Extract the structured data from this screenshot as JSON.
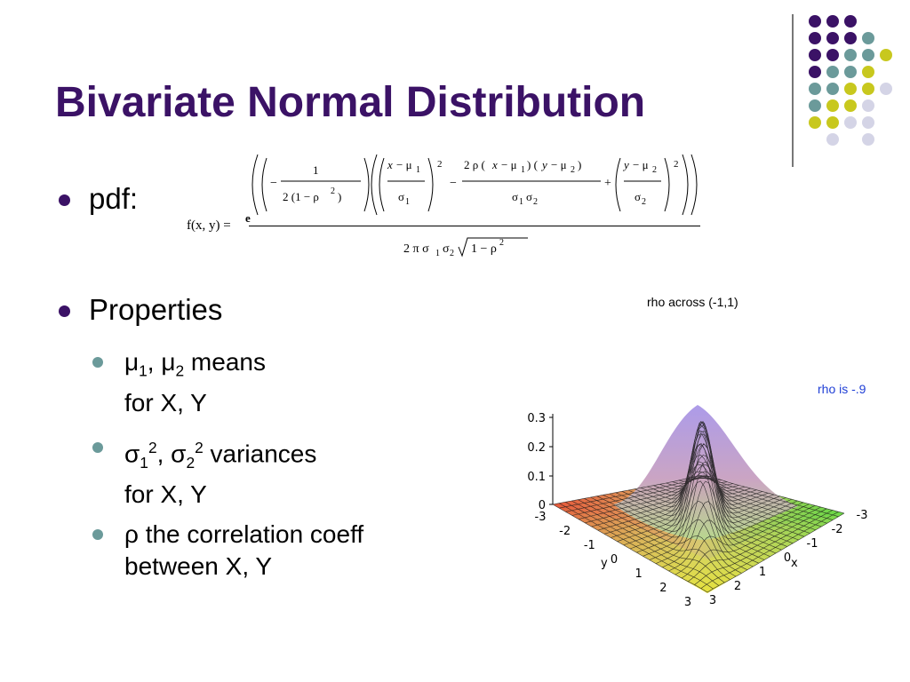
{
  "slide": {
    "title": "Bivariate Normal Distribution",
    "bullets": [
      {
        "label": "pdf:"
      },
      {
        "label": "Properties"
      }
    ],
    "sub_bullets": [
      {
        "line1_parts": [
          "μ",
          "1",
          ", μ",
          "2",
          " means"
        ],
        "line2": "for X, Y"
      },
      {
        "line1_parts": [
          "σ",
          "1",
          "2",
          ", σ",
          "2",
          "2",
          " variances"
        ],
        "line2": "for X, Y"
      },
      {
        "line1": "ρ the correlation coeff",
        "line2": "between X, Y"
      }
    ],
    "equation": {
      "lhs": "f(x, y) =",
      "numerator": "e^( (−1 / (2 (1 − ρ²))) ( ((x − μ₁)/σ₁)² − 2 ρ (x − μ₁)(y − μ₂)/(σ₁ σ₂) + ((y − μ₂)/σ₂)² ) )",
      "denominator": "2 π σ₁ σ₂ √(1 − ρ²)"
    },
    "plot": {
      "title": "rho across (-1,1)",
      "subtitle": "rho is -.9",
      "z_ticks": [
        "0",
        "0.1",
        "0.2",
        "0.3"
      ],
      "y_ticks": [
        "-3",
        "-2",
        "-1",
        "0",
        "1",
        "2",
        "3"
      ],
      "x_ticks": [
        "3",
        "2",
        "1",
        "0",
        "-1",
        "-2",
        "-3"
      ],
      "y_label": "y",
      "x_label": "x",
      "subtitle_color": "#1f3fd6"
    },
    "colors": {
      "title": "#3b1266",
      "dot_purple": "#3b1266",
      "dot_teal": "#6b9a9a",
      "dot_yellow": "#c8c81e",
      "dot_lavender": "#d4d4e6"
    }
  }
}
